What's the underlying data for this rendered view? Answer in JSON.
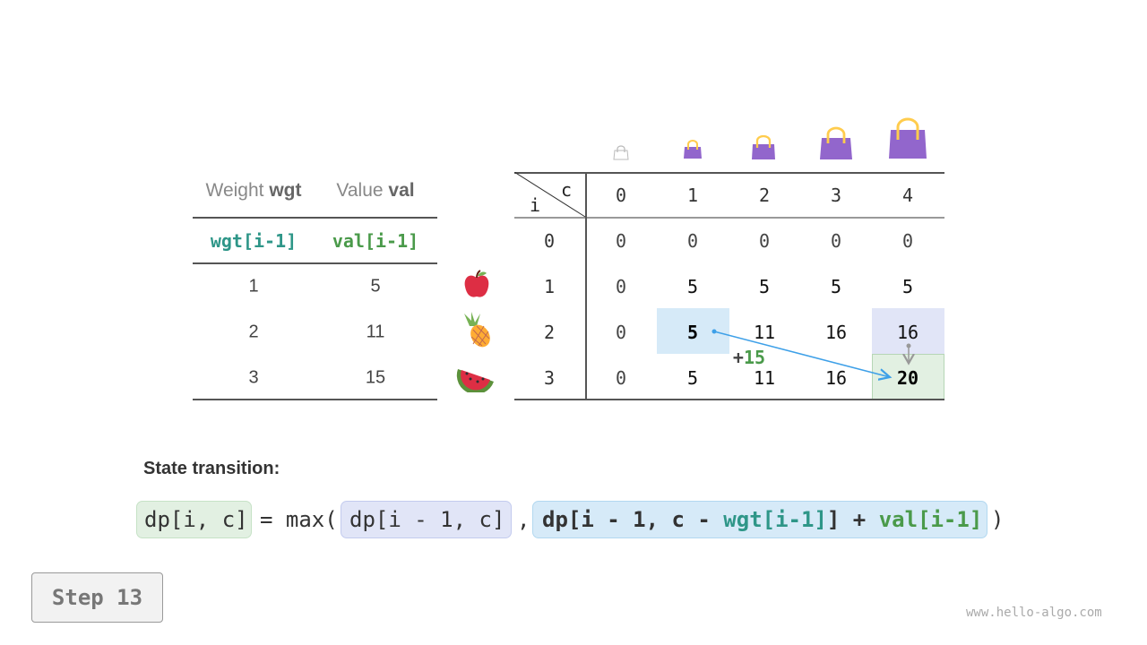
{
  "items_table": {
    "headers": [
      {
        "plain": "Weight ",
        "bold": "wgt"
      },
      {
        "plain": "Value ",
        "bold": "val"
      }
    ],
    "subheaders": [
      "wgt[i-1]",
      "val[i-1]"
    ],
    "rows": [
      {
        "wgt": "1",
        "val": "5",
        "item": "apple-icon"
      },
      {
        "wgt": "2",
        "val": "11",
        "item": "pineapple-icon"
      },
      {
        "wgt": "3",
        "val": "15",
        "item": "watermelon-icon"
      }
    ],
    "colors": {
      "wgt": "#2e9688",
      "val": "#4a9a4a"
    }
  },
  "dp_table": {
    "corner_c": "c",
    "corner_i": "i",
    "col_headers": [
      "0",
      "1",
      "2",
      "3",
      "4"
    ],
    "row_headers": [
      "0",
      "1",
      "2",
      "3"
    ],
    "cells": [
      [
        "0",
        "0",
        "0",
        "0",
        "0"
      ],
      [
        "0",
        "5",
        "5",
        "5",
        "5"
      ],
      [
        "0",
        "5",
        "11",
        "16",
        "16"
      ],
      [
        "0",
        "5",
        "11",
        "16",
        "20"
      ]
    ],
    "capacity_icons": [
      "bag-icon-empty",
      "bag-icon-1",
      "bag-icon-2",
      "bag-icon-3",
      "bag-icon-4"
    ],
    "plus_label": {
      "sign": "+",
      "value": "15"
    },
    "highlight_colors": {
      "source_take": "#d6eaf8",
      "source_skip": "#e1e5f7",
      "target": "#e2f0e2"
    }
  },
  "transition": {
    "label": "State transition:",
    "lhs": "dp[i, c]",
    "eq": "= max(",
    "option1": "dp[i - 1, c]",
    "comma": ",",
    "option2_a": "dp[i - 1, c - ",
    "option2_wgt": "wgt[i-1]",
    "option2_b": "] + ",
    "option2_val": "val[i-1]",
    "close": ")"
  },
  "step_button": "Step 13",
  "watermark": "www.hello-algo.com"
}
